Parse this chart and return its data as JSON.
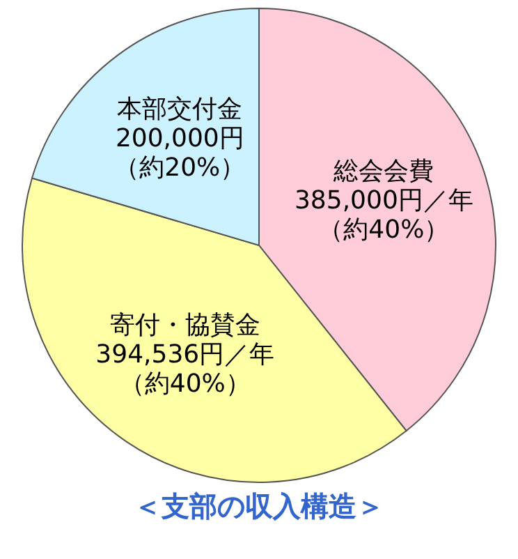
{
  "chart_data": {
    "type": "pie",
    "title": "＜支部の収入構造＞",
    "categories": [
      "総会会費",
      "寄付・協賛金",
      "本部交付金"
    ],
    "values": [
      385000,
      394536,
      200000
    ],
    "value_labels": [
      "385,000円／年",
      "394,536円／年",
      "200,000円"
    ],
    "annotations": [
      "（約40%）",
      "（約40%）",
      "（約20%）"
    ],
    "colors": [
      "#ffccd9",
      "#ffffa6",
      "#ccf2ff"
    ],
    "legend": false
  }
}
